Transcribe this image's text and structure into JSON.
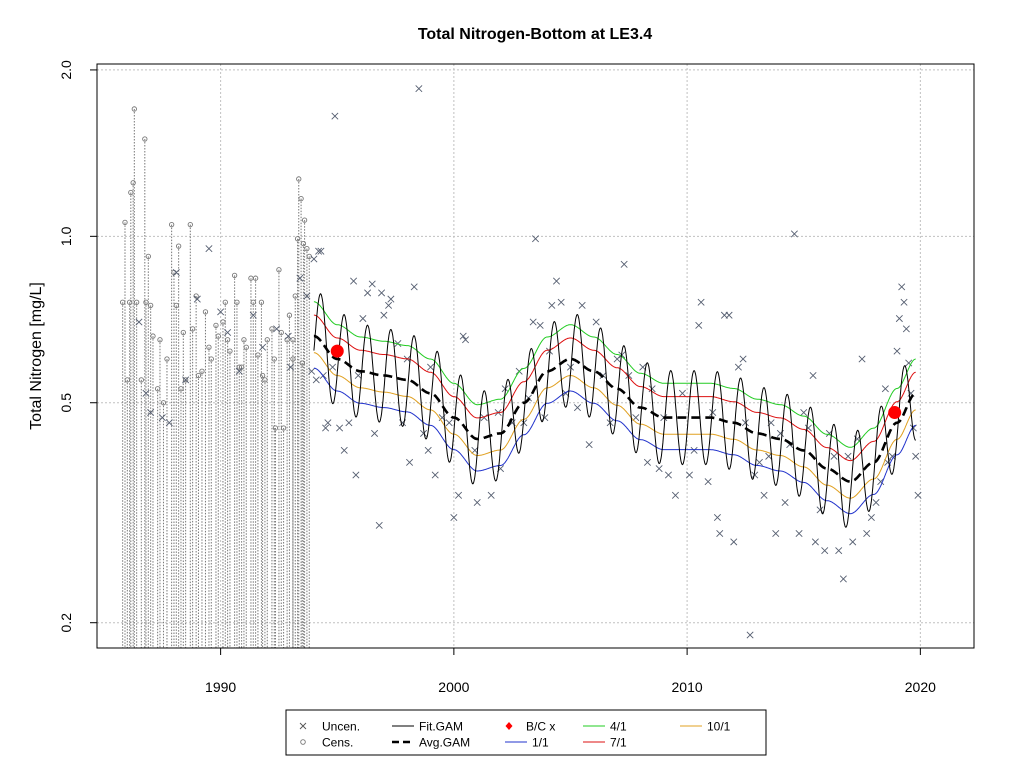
{
  "chart_data": {
    "type": "scatter",
    "title": "Total Nitrogen-Bottom at LE3.4",
    "ylabel": "Total Nitrogen [mg/L]",
    "xlabel": "",
    "x_axis": {
      "min": 1984.7,
      "max": 2022.3,
      "ticks": [
        1990,
        2000,
        2010,
        2020
      ]
    },
    "y_axis": {
      "scale": "log",
      "min": 0.18,
      "max": 2.05,
      "ticks": [
        0.2,
        0.5,
        1.0,
        2.0
      ],
      "tick_labels": [
        "0.2",
        "0.5",
        "1.0",
        "2.0"
      ]
    },
    "grid": true,
    "legend_position": "bottom",
    "legend": [
      {
        "key": "uncen",
        "label": "Uncen.",
        "symbol": "x",
        "color": "#555555"
      },
      {
        "key": "cens",
        "label": "Cens.",
        "symbol": "o",
        "color": "#777777"
      },
      {
        "key": "fit",
        "label": "Fit.GAM",
        "symbol": "line",
        "color": "#000000"
      },
      {
        "key": "avg",
        "label": "Avg.GAM",
        "symbol": "dash",
        "color": "#000000"
      },
      {
        "key": "bc",
        "label": "B/C x",
        "symbol": "diamond",
        "color": "#ff0000"
      },
      {
        "key": "r1",
        "label": "1/1",
        "symbol": "line",
        "color": "#2233cc"
      },
      {
        "key": "r4",
        "label": "4/1",
        "symbol": "line",
        "color": "#22cc22"
      },
      {
        "key": "r7",
        "label": "7/1",
        "symbol": "line",
        "color": "#dd1111"
      },
      {
        "key": "r10",
        "label": "10/1",
        "symbol": "line",
        "color": "#e0a020"
      }
    ],
    "colors": {
      "uncensored": "#555e70",
      "censored": "#777777",
      "grid": "#c0c0c0",
      "fit": "#000000",
      "avg": "#000000",
      "bc": "#ff0000",
      "ratio_1_1": "#2233cc",
      "ratio_4_1": "#22cc22",
      "ratio_7_1": "#dd1111",
      "ratio_10_1": "#e0a020"
    },
    "censored": [
      [
        1985.8,
        0.76
      ],
      [
        1985.9,
        1.06
      ],
      [
        1986.0,
        0.55
      ],
      [
        1986.1,
        0.76
      ],
      [
        1986.15,
        1.2
      ],
      [
        1986.25,
        1.25
      ],
      [
        1986.3,
        1.7
      ],
      [
        1986.4,
        0.76
      ],
      [
        1986.6,
        0.55
      ],
      [
        1986.75,
        1.5
      ],
      [
        1986.8,
        0.76
      ],
      [
        1986.9,
        0.92
      ],
      [
        1987.0,
        0.75
      ],
      [
        1987.1,
        0.66
      ],
      [
        1987.3,
        0.53
      ],
      [
        1987.4,
        0.65
      ],
      [
        1987.55,
        0.5
      ],
      [
        1987.7,
        0.6
      ],
      [
        1987.9,
        1.05
      ],
      [
        1988.0,
        0.86
      ],
      [
        1988.1,
        0.75
      ],
      [
        1988.2,
        0.96
      ],
      [
        1988.4,
        0.67
      ],
      [
        1988.5,
        0.55
      ],
      [
        1988.7,
        1.05
      ],
      [
        1988.8,
        0.68
      ],
      [
        1988.95,
        0.78
      ],
      [
        1989.05,
        0.56
      ],
      [
        1989.2,
        0.57
      ],
      [
        1989.35,
        0.73
      ],
      [
        1989.5,
        0.63
      ],
      [
        1989.6,
        0.6
      ],
      [
        1989.8,
        0.69
      ],
      [
        1989.9,
        0.66
      ],
      [
        1990.1,
        0.7
      ],
      [
        1990.2,
        0.76
      ],
      [
        1990.3,
        0.65
      ],
      [
        1990.4,
        0.62
      ],
      [
        1990.6,
        0.85
      ],
      [
        1990.7,
        0.76
      ],
      [
        1990.8,
        0.58
      ],
      [
        1991.0,
        0.65
      ],
      [
        1991.1,
        0.63
      ],
      [
        1991.3,
        0.84
      ],
      [
        1991.4,
        0.76
      ],
      [
        1991.5,
        0.84
      ],
      [
        1991.6,
        0.61
      ],
      [
        1991.75,
        0.76
      ],
      [
        1991.9,
        0.55
      ],
      [
        1992.0,
        0.65
      ],
      [
        1992.2,
        0.68
      ],
      [
        1992.35,
        0.45
      ],
      [
        1992.5,
        0.87
      ],
      [
        1992.6,
        0.67
      ],
      [
        1992.7,
        0.45
      ],
      [
        1992.85,
        0.65
      ],
      [
        1992.95,
        0.72
      ],
      [
        1993.1,
        0.65
      ],
      [
        1993.2,
        0.78
      ],
      [
        1993.3,
        0.99
      ],
      [
        1993.35,
        1.27
      ],
      [
        1993.45,
        1.17
      ],
      [
        1993.55,
        0.97
      ],
      [
        1993.6,
        1.07
      ],
      [
        1993.7,
        0.95
      ],
      [
        1993.8,
        0.92
      ],
      [
        1993.5,
        0.59
      ],
      [
        1993.1,
        0.6
      ],
      [
        1992.3,
        0.6
      ],
      [
        1991.8,
        0.56
      ],
      [
        1990.9,
        0.58
      ],
      [
        1988.3,
        0.53
      ]
    ],
    "censored_floor": 0.18,
    "uncensored": [
      [
        1986.5,
        0.7
      ],
      [
        1986.8,
        0.52
      ],
      [
        1987.0,
        0.48
      ],
      [
        1987.5,
        0.47
      ],
      [
        1987.8,
        0.46
      ],
      [
        1988.1,
        0.86
      ],
      [
        1988.5,
        0.55
      ],
      [
        1989.0,
        0.77
      ],
      [
        1989.5,
        0.95
      ],
      [
        1990.0,
        0.73
      ],
      [
        1990.3,
        0.67
      ],
      [
        1990.8,
        0.57
      ],
      [
        1991.4,
        0.72
      ],
      [
        1991.8,
        0.63
      ],
      [
        1992.4,
        0.68
      ],
      [
        1992.9,
        0.66
      ],
      [
        1993.0,
        0.58
      ],
      [
        1993.4,
        0.84
      ],
      [
        1993.7,
        0.78
      ],
      [
        1993.9,
        0.57
      ],
      [
        1994.0,
        0.91
      ],
      [
        1994.1,
        0.55
      ],
      [
        1994.2,
        0.94
      ],
      [
        1994.3,
        0.94
      ],
      [
        1994.4,
        0.56
      ],
      [
        1994.5,
        0.45
      ],
      [
        1994.6,
        0.46
      ],
      [
        1994.8,
        0.58
      ],
      [
        1994.9,
        1.65
      ],
      [
        1995.1,
        0.45
      ],
      [
        1995.3,
        0.41
      ],
      [
        1995.5,
        0.46
      ],
      [
        1995.7,
        0.83
      ],
      [
        1995.8,
        0.37
      ],
      [
        1995.9,
        0.56
      ],
      [
        1996.1,
        0.71
      ],
      [
        1996.3,
        0.79
      ],
      [
        1996.5,
        0.82
      ],
      [
        1996.6,
        0.44
      ],
      [
        1996.8,
        0.3
      ],
      [
        1996.9,
        0.79
      ],
      [
        1997.0,
        0.72
      ],
      [
        1997.2,
        0.75
      ],
      [
        1997.3,
        0.77
      ],
      [
        1997.6,
        0.64
      ],
      [
        1997.8,
        0.46
      ],
      [
        1998.0,
        0.6
      ],
      [
        1998.1,
        0.39
      ],
      [
        1998.3,
        0.81
      ],
      [
        1998.5,
        1.85
      ],
      [
        1998.7,
        0.44
      ],
      [
        1998.9,
        0.41
      ],
      [
        1999.0,
        0.58
      ],
      [
        1999.2,
        0.37
      ],
      [
        1999.5,
        0.47
      ],
      [
        1999.8,
        0.46
      ],
      [
        2000.0,
        0.31
      ],
      [
        2000.2,
        0.34
      ],
      [
        2000.4,
        0.66
      ],
      [
        2000.5,
        0.65
      ],
      [
        2000.9,
        0.41
      ],
      [
        2001.0,
        0.33
      ],
      [
        2001.3,
        0.47
      ],
      [
        2001.6,
        0.34
      ],
      [
        2001.9,
        0.48
      ],
      [
        2002.0,
        0.38
      ],
      [
        2002.2,
        0.53
      ],
      [
        2002.5,
        0.46
      ],
      [
        2002.8,
        0.57
      ],
      [
        2003.0,
        0.46
      ],
      [
        2003.2,
        0.51
      ],
      [
        2003.4,
        0.7
      ],
      [
        2003.5,
        0.99
      ],
      [
        2003.7,
        0.69
      ],
      [
        2003.9,
        0.47
      ],
      [
        2004.1,
        0.62
      ],
      [
        2004.2,
        0.75
      ],
      [
        2004.4,
        0.83
      ],
      [
        2004.6,
        0.76
      ],
      [
        2004.8,
        0.52
      ],
      [
        2005.0,
        0.58
      ],
      [
        2005.3,
        0.49
      ],
      [
        2005.5,
        0.75
      ],
      [
        2005.8,
        0.42
      ],
      [
        2006.1,
        0.7
      ],
      [
        2006.4,
        0.56
      ],
      [
        2006.7,
        0.46
      ],
      [
        2007.0,
        0.6
      ],
      [
        2007.2,
        0.61
      ],
      [
        2007.3,
        0.89
      ],
      [
        2007.5,
        0.56
      ],
      [
        2007.8,
        0.47
      ],
      [
        2008.1,
        0.58
      ],
      [
        2008.3,
        0.39
      ],
      [
        2008.5,
        0.53
      ],
      [
        2008.8,
        0.38
      ],
      [
        2009.0,
        0.47
      ],
      [
        2009.2,
        0.37
      ],
      [
        2009.5,
        0.34
      ],
      [
        2009.8,
        0.52
      ],
      [
        2010.1,
        0.37
      ],
      [
        2010.3,
        0.41
      ],
      [
        2010.5,
        0.69
      ],
      [
        2010.6,
        0.76
      ],
      [
        2010.9,
        0.36
      ],
      [
        2011.1,
        0.48
      ],
      [
        2011.3,
        0.31
      ],
      [
        2011.4,
        0.29
      ],
      [
        2011.6,
        0.72
      ],
      [
        2011.8,
        0.72
      ],
      [
        2012.0,
        0.28
      ],
      [
        2012.2,
        0.58
      ],
      [
        2012.4,
        0.6
      ],
      [
        2012.5,
        0.46
      ],
      [
        2012.7,
        0.19
      ],
      [
        2012.9,
        0.37
      ],
      [
        2013.1,
        0.39
      ],
      [
        2013.3,
        0.34
      ],
      [
        2013.5,
        0.4
      ],
      [
        2013.6,
        0.46
      ],
      [
        2013.8,
        0.29
      ],
      [
        2014.0,
        0.44
      ],
      [
        2014.2,
        0.33
      ],
      [
        2014.4,
        0.42
      ],
      [
        2014.6,
        1.01
      ],
      [
        2014.8,
        0.29
      ],
      [
        2015.0,
        0.48
      ],
      [
        2015.2,
        0.45
      ],
      [
        2015.4,
        0.56
      ],
      [
        2015.5,
        0.28
      ],
      [
        2015.7,
        0.32
      ],
      [
        2015.9,
        0.27
      ],
      [
        2016.1,
        0.44
      ],
      [
        2016.3,
        0.4
      ],
      [
        2016.5,
        0.27
      ],
      [
        2016.7,
        0.24
      ],
      [
        2016.9,
        0.4
      ],
      [
        2017.1,
        0.28
      ],
      [
        2017.3,
        0.43
      ],
      [
        2017.5,
        0.6
      ],
      [
        2017.7,
        0.29
      ],
      [
        2017.9,
        0.31
      ],
      [
        2018.1,
        0.33
      ],
      [
        2018.3,
        0.36
      ],
      [
        2018.5,
        0.53
      ],
      [
        2018.6,
        0.39
      ],
      [
        2018.8,
        0.4
      ],
      [
        2018.9,
        0.48
      ],
      [
        2019.0,
        0.62
      ],
      [
        2019.1,
        0.71
      ],
      [
        2019.2,
        0.81
      ],
      [
        2019.3,
        0.76
      ],
      [
        2019.4,
        0.68
      ],
      [
        2019.5,
        0.59
      ],
      [
        2019.6,
        0.52
      ],
      [
        2019.7,
        0.45
      ],
      [
        2019.8,
        0.4
      ],
      [
        2019.9,
        0.34
      ]
    ],
    "fit_gam": {
      "x_start": 1994.0,
      "x_end": 2019.8,
      "avg_anchor_x": [
        1994.0,
        1995.0,
        1996.0,
        1997.0,
        1998.0,
        1999.0,
        2000.0,
        2001.0,
        2002.0,
        2003.0,
        2004.0,
        2005.0,
        2006.0,
        2007.0,
        2008.0,
        2009.0,
        2010.0,
        2011.0,
        2012.0,
        2013.0,
        2014.0,
        2015.0,
        2016.0,
        2017.0,
        2018.0,
        2019.0,
        2019.8
      ],
      "avg_anchor_y": [
        0.66,
        0.6,
        0.57,
        0.56,
        0.55,
        0.52,
        0.47,
        0.43,
        0.44,
        0.5,
        0.57,
        0.6,
        0.57,
        0.53,
        0.49,
        0.47,
        0.47,
        0.47,
        0.46,
        0.44,
        0.43,
        0.41,
        0.38,
        0.36,
        0.39,
        0.46,
        0.52
      ],
      "seasonal_amplitude_log": 0.085,
      "period_years": 1.0
    },
    "ratio_offsets_log10": {
      "ratio_1_1": -0.058,
      "ratio_10_1": -0.03,
      "ratio_7_1": 0.038,
      "ratio_4_1": 0.062
    },
    "bc_points": [
      [
        1995.0,
        0.62
      ],
      [
        2018.9,
        0.48
      ]
    ]
  }
}
